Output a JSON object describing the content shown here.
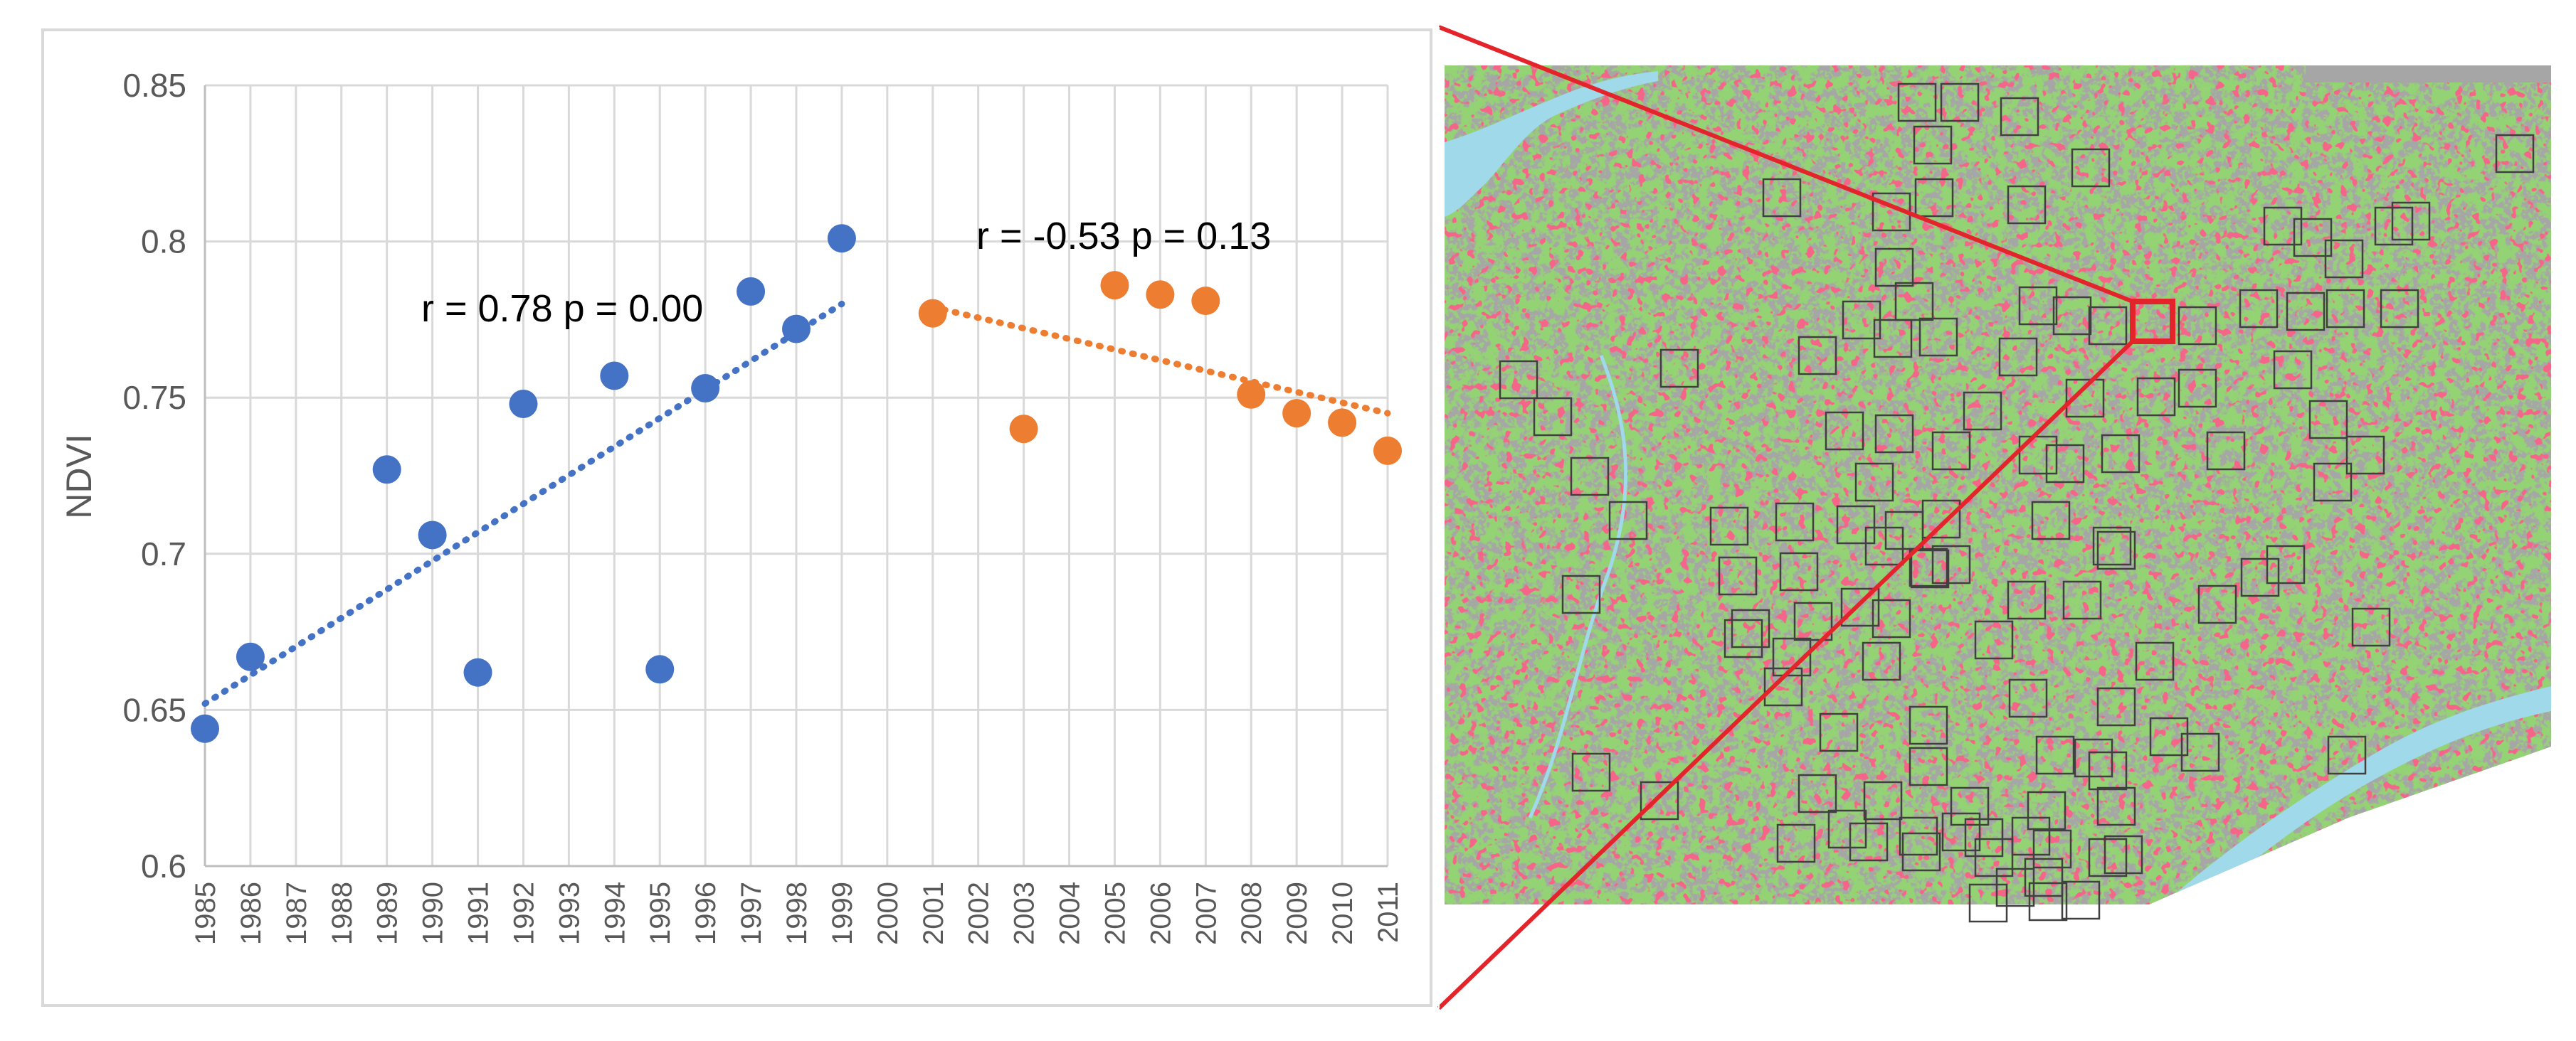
{
  "chart_data": {
    "type": "scatter",
    "xlabel": "",
    "ylabel": "NDVI",
    "ylim": [
      0.6,
      0.85
    ],
    "yticks": [
      "0.6",
      "0.65",
      "0.7",
      "0.75",
      "0.8",
      "0.85"
    ],
    "categories": [
      "1985",
      "1986",
      "1987",
      "1988",
      "1989",
      "1990",
      "1991",
      "1992",
      "1993",
      "1994",
      "1995",
      "1996",
      "1997",
      "1998",
      "1999",
      "2000",
      "2001",
      "2002",
      "2003",
      "2004",
      "2005",
      "2006",
      "2007",
      "2008",
      "2009",
      "2010",
      "2011"
    ],
    "grid": true,
    "legend": "none",
    "series": [
      {
        "color": "#4472c4",
        "x": [
          "1985",
          "1986",
          "1989",
          "1990",
          "1991",
          "1992",
          "1994",
          "1995",
          "1996",
          "1997",
          "1998",
          "1999"
        ],
        "values": [
          0.644,
          0.667,
          0.727,
          0.706,
          0.662,
          0.748,
          0.757,
          0.663,
          0.753,
          0.784,
          0.772,
          0.801
        ],
        "trend": {
          "from": "1985",
          "to": "1999",
          "start": 0.652,
          "end": 0.78
        }
      },
      {
        "color": "#ed7d31",
        "x": [
          "2001",
          "2003",
          "2005",
          "2006",
          "2007",
          "2008",
          "2009",
          "2010",
          "2011"
        ],
        "values": [
          0.777,
          0.74,
          0.786,
          0.783,
          0.781,
          0.751,
          0.745,
          0.742,
          0.733
        ],
        "trend": {
          "from": "2001",
          "to": "2011",
          "start": 0.779,
          "end": 0.745
        }
      }
    ],
    "annotations": [
      "r = 0.78 p = 0.00",
      "r = -0.53 p = 0.13"
    ]
  },
  "map": {
    "land_color": "#a6a6a6",
    "vegetation_color": "#4aa52a",
    "urban_color": "#e8213f",
    "water_color": "#9fd9ea",
    "highlight_color": "#e3242b"
  }
}
